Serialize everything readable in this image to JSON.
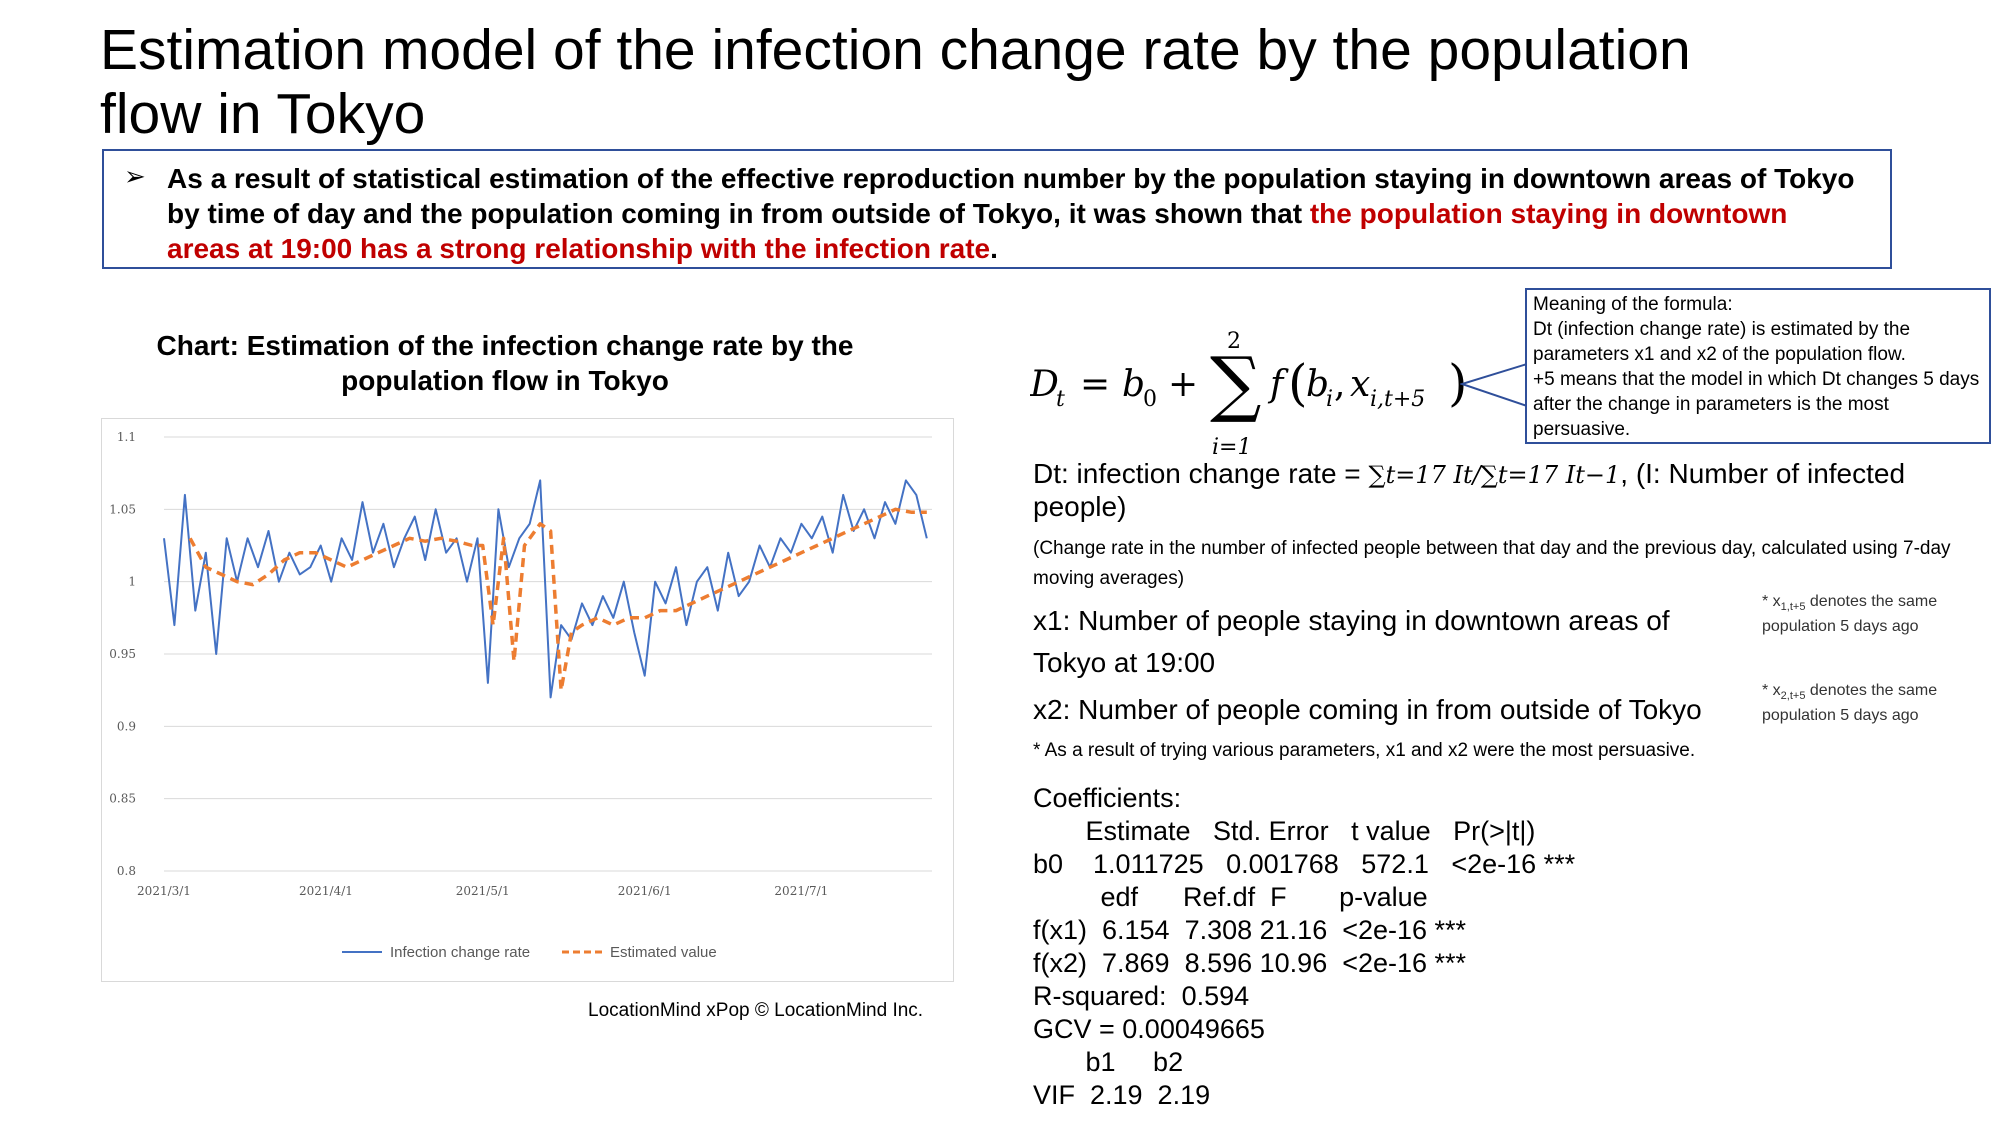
{
  "slide": {
    "title": "Estimation model of the infection change rate by the population flow in Tokyo",
    "callout": {
      "bullet": "➢",
      "text_plain": "As a result of statistical estimation of the effective reproduction number by the population staying in downtown areas of Tokyo by time of day and the population coming in from outside of Tokyo, it was shown that ",
      "text_highlight": "the population staying in downtown areas at 19:00 has a strong relationship with the infection rate",
      "text_end": "."
    },
    "chart_title": "Chart: Estimation of the infection change rate by the population flow in Tokyo",
    "credit": "LocationMind xPop © LocationMind Inc.",
    "formula": {
      "lhs": "D",
      "lhs_sub": "t",
      "b0": "b",
      "b0_sub": "0",
      "sum_top": "2",
      "sum_bottom": "i=1",
      "func": "f",
      "bi": "b",
      "bi_sub": "i",
      "xi": "x",
      "xi_sub": "i,t+5"
    },
    "meaning": {
      "heading": "Meaning of the formula:",
      "line1": "Dt (infection change rate) is estimated by the parameters x1 and x2 of the population flow.",
      "line2": "+5 means that the model in which Dt changes 5 days after the change in parameters is the most persuasive."
    },
    "dt_definition": {
      "prefix": "Dt: infection change rate = ",
      "formula_text": "∑t=17 It/∑t=17 It−1",
      "suffix": ", (I: Number of infected people)"
    },
    "change_note": "(Change rate in the number of infected people between that day and the previous day, calculated using 7-day moving averages)",
    "x1_text": "x1: Number of people staying in downtown areas of Tokyo at 19:00",
    "x2_text": "x2: Number of people coming in from outside of Tokyo",
    "note1": {
      "prefix": "* x",
      "sub": "1,t+5",
      "suffix": " denotes the same population 5 days ago"
    },
    "note2": {
      "prefix": "* x",
      "sub": "2,t+5",
      "suffix": " denotes the same population 5 days ago"
    },
    "persuasive": "* As a result of trying various parameters, x1 and x2 were the most persuasive.",
    "coefficients": [
      "Coefficients:",
      "       Estimate   Std. Error   t value   Pr(>|t|)",
      "b0    1.011725   0.001768   572.1   <2e-16 ***",
      "         edf      Ref.df  F       p-value",
      "f(x1)  6.154  7.308 21.16  <2e-16 ***",
      "f(x2)  7.869  8.596 10.96  <2e-16 ***",
      "R-squared:  0.594",
      "GCV = 0.00049665",
      "       b1     b2",
      "VIF  2.19  2.19"
    ]
  },
  "chart_data": {
    "type": "line",
    "title": "Chart: Estimation of the infection change rate by the population flow in Tokyo",
    "xlabel": "",
    "ylabel": "",
    "ylim": [
      0.8,
      1.1
    ],
    "yticks": [
      0.8,
      0.85,
      0.9,
      0.95,
      1,
      1.05,
      1.1
    ],
    "ytick_labels": [
      "0.8",
      "0.85",
      "0.9",
      "0.95",
      "1",
      "1.05",
      "1.1"
    ],
    "xticks": [
      "2021-03-01",
      "2021-04-01",
      "2021-05-01",
      "2021-06-01",
      "2021-07-01"
    ],
    "xtick_labels": [
      "2021/3/1",
      "2021/4/1",
      "2021/5/1",
      "2021/6/1",
      "2021/7/1"
    ],
    "xrange": [
      "2021-03-01",
      "2021-07-26"
    ],
    "grid": "horizontal",
    "legend_position": "bottom",
    "series": [
      {
        "name": "Infection change rate",
        "color": "#4472c4",
        "style": "solid",
        "x": [
          "2021-03-01",
          "2021-03-03",
          "2021-03-05",
          "2021-03-07",
          "2021-03-09",
          "2021-03-11",
          "2021-03-13",
          "2021-03-15",
          "2021-03-17",
          "2021-03-19",
          "2021-03-21",
          "2021-03-23",
          "2021-03-25",
          "2021-03-27",
          "2021-03-29",
          "2021-03-31",
          "2021-04-02",
          "2021-04-04",
          "2021-04-06",
          "2021-04-08",
          "2021-04-10",
          "2021-04-12",
          "2021-04-14",
          "2021-04-16",
          "2021-04-18",
          "2021-04-20",
          "2021-04-22",
          "2021-04-24",
          "2021-04-26",
          "2021-04-28",
          "2021-04-30",
          "2021-05-02",
          "2021-05-04",
          "2021-05-06",
          "2021-05-08",
          "2021-05-10",
          "2021-05-12",
          "2021-05-14",
          "2021-05-16",
          "2021-05-18",
          "2021-05-20",
          "2021-05-22",
          "2021-05-24",
          "2021-05-26",
          "2021-05-28",
          "2021-05-30",
          "2021-06-01",
          "2021-06-03",
          "2021-06-05",
          "2021-06-07",
          "2021-06-09",
          "2021-06-11",
          "2021-06-13",
          "2021-06-15",
          "2021-06-17",
          "2021-06-19",
          "2021-06-21",
          "2021-06-23",
          "2021-06-25",
          "2021-06-27",
          "2021-06-29",
          "2021-07-01",
          "2021-07-03",
          "2021-07-05",
          "2021-07-07",
          "2021-07-09",
          "2021-07-11",
          "2021-07-13",
          "2021-07-15",
          "2021-07-17",
          "2021-07-19",
          "2021-07-21",
          "2021-07-23",
          "2021-07-25"
        ],
        "values": [
          1.03,
          0.97,
          1.06,
          0.98,
          1.02,
          0.95,
          1.03,
          1.0,
          1.03,
          1.01,
          1.035,
          1.0,
          1.02,
          1.005,
          1.01,
          1.025,
          1.0,
          1.03,
          1.015,
          1.055,
          1.02,
          1.04,
          1.01,
          1.03,
          1.045,
          1.015,
          1.05,
          1.02,
          1.03,
          1.0,
          1.03,
          0.93,
          1.05,
          1.01,
          1.03,
          1.04,
          1.07,
          0.92,
          0.97,
          0.96,
          0.985,
          0.97,
          0.99,
          0.975,
          1.0,
          0.965,
          0.935,
          1.0,
          0.985,
          1.01,
          0.97,
          1.0,
          1.01,
          0.98,
          1.02,
          0.99,
          1.0,
          1.025,
          1.01,
          1.03,
          1.02,
          1.04,
          1.03,
          1.045,
          1.02,
          1.06,
          1.035,
          1.05,
          1.03,
          1.055,
          1.04,
          1.07,
          1.06,
          1.03
        ]
      },
      {
        "name": "Estimated value",
        "color": "#ed7d31",
        "style": "dashed",
        "x": [
          "2021-03-06",
          "2021-03-09",
          "2021-03-12",
          "2021-03-15",
          "2021-03-18",
          "2021-03-21",
          "2021-03-24",
          "2021-03-27",
          "2021-03-30",
          "2021-04-02",
          "2021-04-05",
          "2021-04-08",
          "2021-04-11",
          "2021-04-14",
          "2021-04-17",
          "2021-04-20",
          "2021-04-23",
          "2021-04-26",
          "2021-04-29",
          "2021-05-01",
          "2021-05-03",
          "2021-05-05",
          "2021-05-07",
          "2021-05-09",
          "2021-05-12",
          "2021-05-14",
          "2021-05-16",
          "2021-05-18",
          "2021-05-20",
          "2021-05-23",
          "2021-05-26",
          "2021-05-29",
          "2021-06-01",
          "2021-06-04",
          "2021-06-07",
          "2021-06-10",
          "2021-06-13",
          "2021-06-16",
          "2021-06-19",
          "2021-06-22",
          "2021-06-25",
          "2021-06-28",
          "2021-07-01",
          "2021-07-04",
          "2021-07-07",
          "2021-07-10",
          "2021-07-13",
          "2021-07-16",
          "2021-07-19",
          "2021-07-22",
          "2021-07-25"
        ],
        "values": [
          1.03,
          1.01,
          1.005,
          1.0,
          0.998,
          1.005,
          1.015,
          1.02,
          1.02,
          1.015,
          1.01,
          1.015,
          1.02,
          1.025,
          1.03,
          1.028,
          1.03,
          1.028,
          1.025,
          1.025,
          0.97,
          1.03,
          0.945,
          1.025,
          1.04,
          1.035,
          0.925,
          0.965,
          0.97,
          0.975,
          0.97,
          0.975,
          0.975,
          0.98,
          0.98,
          0.985,
          0.99,
          0.995,
          1.0,
          1.005,
          1.01,
          1.015,
          1.02,
          1.025,
          1.03,
          1.035,
          1.04,
          1.045,
          1.05,
          1.048,
          1.048
        ]
      }
    ]
  }
}
